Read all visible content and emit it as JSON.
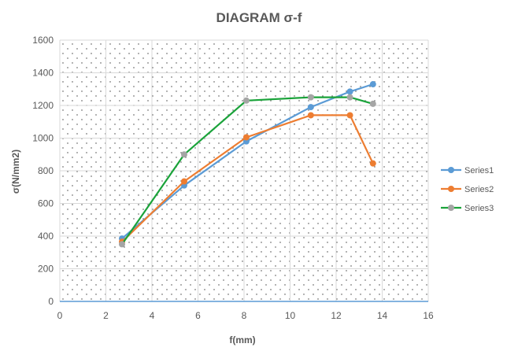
{
  "chart_data": {
    "type": "scatter",
    "title": "DIAGRAM σ-f",
    "xlabel": "f(mm)",
    "ylabel": "σ(N/mm2)",
    "xlim": [
      0,
      16
    ],
    "ylim": [
      0,
      1600
    ],
    "xticks": [
      0,
      2,
      4,
      6,
      8,
      10,
      12,
      14,
      16
    ],
    "yticks": [
      0,
      200,
      400,
      600,
      800,
      1000,
      1200,
      1400,
      1600
    ],
    "grid": "dotted",
    "legend_position": "right",
    "series": [
      {
        "name": "Series1",
        "color": "#5B9BD5",
        "x": [
          2.7,
          5.4,
          8.1,
          10.9,
          12.6,
          13.6
        ],
        "y": [
          385,
          710,
          980,
          1190,
          1285,
          1330
        ]
      },
      {
        "name": "Series2",
        "color": "#ED7D31",
        "x": [
          2.7,
          5.4,
          8.1,
          10.9,
          12.6,
          13.6
        ],
        "y": [
          365,
          735,
          1005,
          1140,
          1140,
          845
        ]
      },
      {
        "name": "Series3",
        "color": "#1AA33A",
        "marker_color": "#A5A5A5",
        "x": [
          2.7,
          5.4,
          8.1,
          10.9,
          12.6,
          13.6
        ],
        "y": [
          350,
          900,
          1230,
          1250,
          1250,
          1210
        ]
      }
    ]
  }
}
